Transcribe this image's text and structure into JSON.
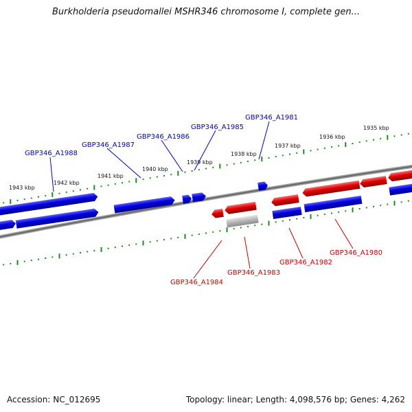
{
  "title": "Burkholderia pseudomallei MSHR346 chromosome I, complete gen...",
  "accession": "Accession: NC_012695",
  "summary": "Topology: linear; Length: 4,098,576 bp; Genes: 4,262",
  "colors": {
    "forward_strand": "#0000e0",
    "reverse_strand": "#e00000",
    "pseudo_gene": "#b4b4b4",
    "backbone": "#7a7a7a",
    "tick": "#1d8a1d"
  },
  "scale_labels": [
    "1943 kbp",
    "1942 kbp",
    "1941 kbp",
    "1940 kbp",
    "1939 kbp",
    "1938 kbp",
    "1937 kbp",
    "1936 kbp",
    "1935 kbp"
  ],
  "gene_labels_top": [
    "GBP346_A1988",
    "GBP346_A1987",
    "GBP346_A1986",
    "GBP346_A1985",
    "GBP346_A1981"
  ],
  "gene_labels_bottom": [
    "GBP346_A1984",
    "GBP346_A1983",
    "GBP346_A1982",
    "GBP346_A1980"
  ]
}
